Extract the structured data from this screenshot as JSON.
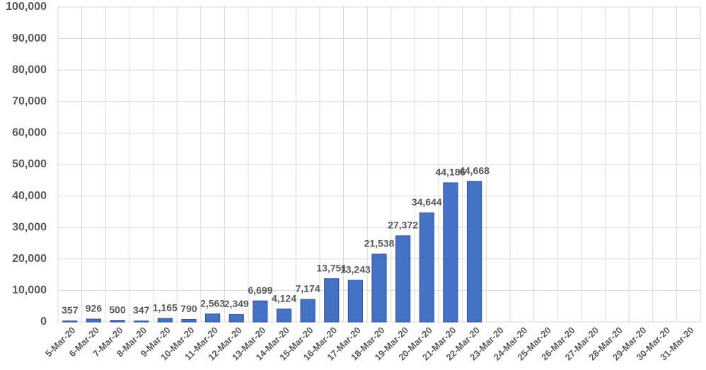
{
  "chart_data": {
    "type": "bar",
    "categories": [
      "5-Mar-20",
      "6-Mar-20",
      "7-Mar-20",
      "8-Mar-20",
      "9-Mar-20",
      "10-Mar-20",
      "11-Mar-20",
      "12-Mar-20",
      "13-Mar-20",
      "14-Mar-20",
      "15-Mar-20",
      "16-Mar-20",
      "17-Mar-20",
      "18-Mar-20",
      "19-Mar-20",
      "20-Mar-20",
      "21-Mar-20",
      "22-Mar-20",
      "23-Mar-20",
      "24-Mar-20",
      "25-Mar-20",
      "26-Mar-20",
      "27-Mar-20",
      "28-Mar-20",
      "29-Mar-20",
      "30-Mar-20",
      "31-Mar-20"
    ],
    "values": [
      357,
      926,
      500,
      347,
      1165,
      790,
      2563,
      2349,
      6699,
      4124,
      7174,
      13751,
      13243,
      21538,
      27372,
      34644,
      44186,
      44668,
      null,
      null,
      null,
      null,
      null,
      null,
      null,
      null,
      null
    ],
    "value_labels": [
      "357",
      "926",
      "500",
      "347",
      "1,165",
      "790",
      "2,563",
      "2,349",
      "6,699",
      "4,124",
      "7,174",
      "13,751",
      "13,243",
      "21,538",
      "27,372",
      "34,644",
      "44,186",
      "44,668",
      null,
      null,
      null,
      null,
      null,
      null,
      null,
      null,
      null
    ],
    "color": "#4472c4",
    "ylim": [
      0,
      100000
    ],
    "yticks": [
      0,
      {
        "value": 10000,
        "label": "10,000"
      },
      {
        "value": 20000,
        "label": "20,000"
      },
      {
        "value": 30000,
        "label": "30,000"
      },
      {
        "value": 40000,
        "label": "40,000"
      },
      {
        "value": 50000,
        "label": "50,000"
      },
      {
        "value": 60000,
        "label": "60,000"
      },
      {
        "value": 70000,
        "label": "70,000"
      },
      {
        "value": 80000,
        "label": "80,000"
      },
      {
        "value": 90000,
        "label": "90,000"
      },
      {
        "value": 100000,
        "label": "100,000"
      }
    ],
    "grid": true
  }
}
